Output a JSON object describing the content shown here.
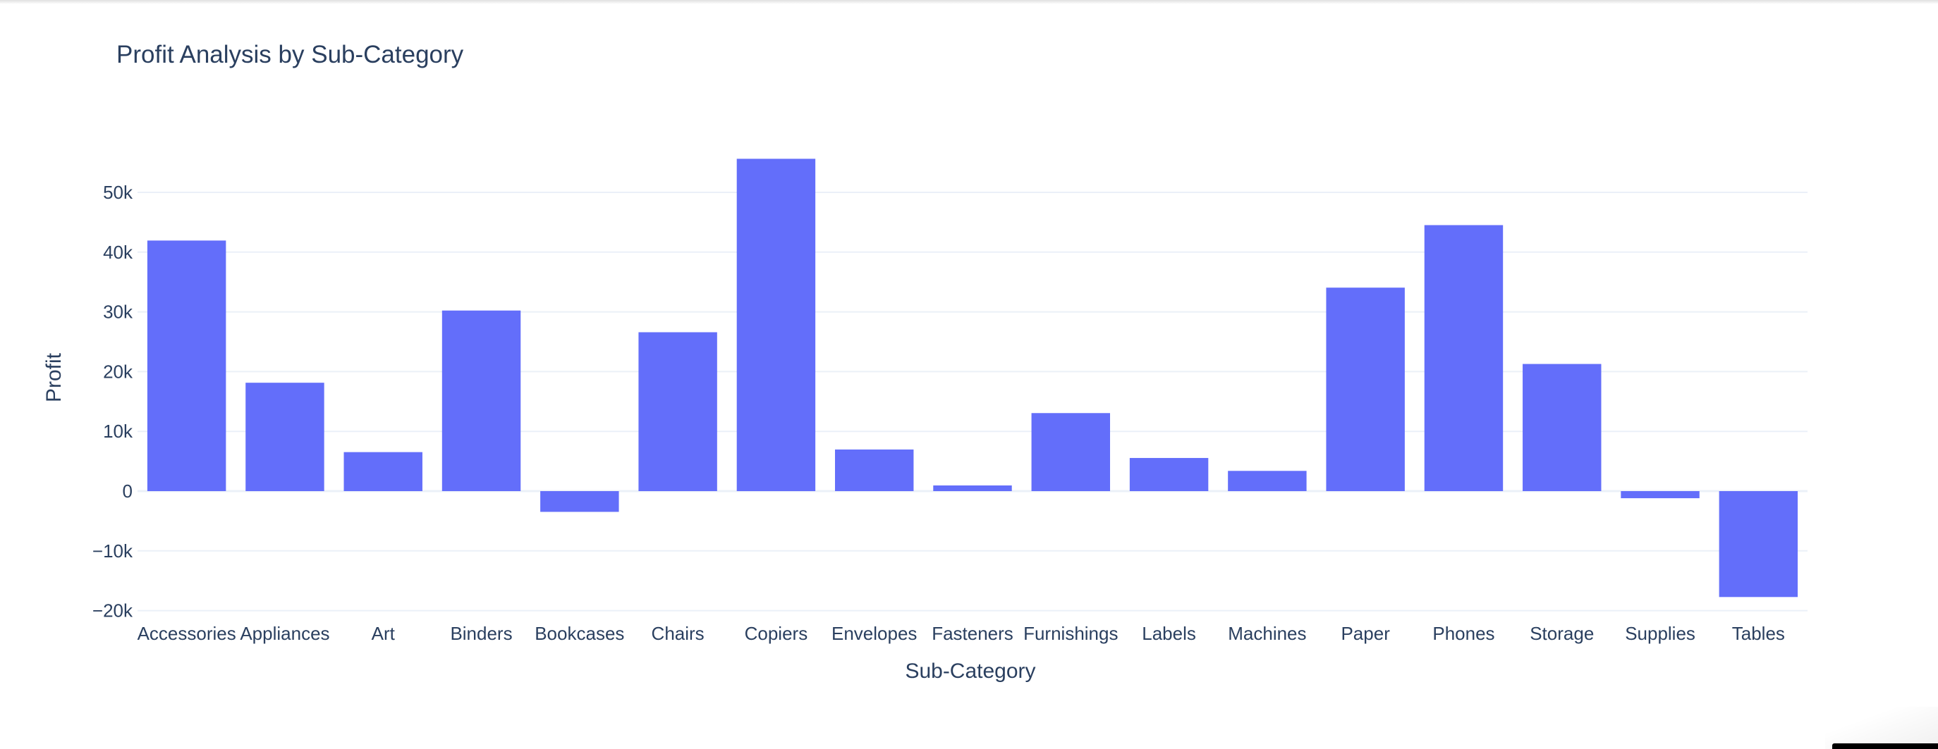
{
  "chart_data": {
    "type": "bar",
    "title": "Profit Analysis by Sub-Category",
    "xlabel": "Sub-Category",
    "ylabel": "Profit",
    "categories": [
      "Accessories",
      "Appliances",
      "Art",
      "Binders",
      "Bookcases",
      "Chairs",
      "Copiers",
      "Envelopes",
      "Fasteners",
      "Furnishings",
      "Labels",
      "Machines",
      "Paper",
      "Phones",
      "Storage",
      "Supplies",
      "Tables"
    ],
    "values": [
      41937,
      18138,
      6528,
      30222,
      -3473,
      26590,
      55618,
      6964,
      950,
      13059,
      5546,
      3385,
      34054,
      44516,
      21279,
      -1189,
      -17725
    ],
    "ylim": [
      -20000,
      57000
    ],
    "yticks": [
      -20000,
      -10000,
      0,
      10000,
      20000,
      30000,
      40000,
      50000
    ],
    "ytick_labels": [
      "−20k",
      "−10k",
      "0",
      "10k",
      "20k",
      "30k",
      "40k",
      "50k"
    ],
    "grid": true,
    "legend": "none",
    "bar_color": "#636efa",
    "grid_color": "#ebf0f8",
    "text_color": "#2a3f5f"
  }
}
